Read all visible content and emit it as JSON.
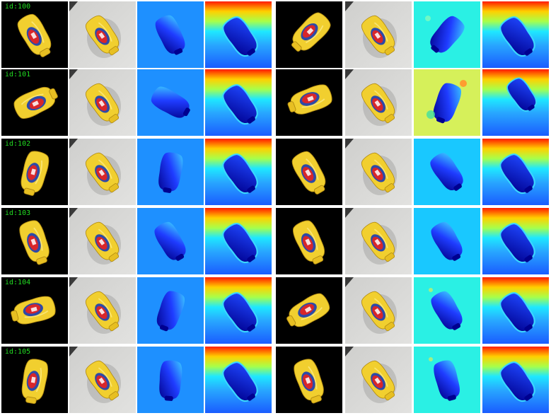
{
  "title": "",
  "columns": [
    "rendered_object",
    "input_photo",
    "predicted_depth",
    "depth_map",
    "rendered_object",
    "input_photo",
    "predicted_depth",
    "depth_map"
  ],
  "colors": {
    "label_green": "#22dd22",
    "background_black": "#000000",
    "photo_gray": "#d6d6d4",
    "mustard_yellow": "#f1cf2f",
    "label_red": "#d8262a",
    "label_blue": "#2d4aa8",
    "depth_blue": "#1e90ff",
    "depth_cyan": "#2af0e4",
    "depth_lime": "#d6f05a",
    "depth_sky": "#19c8ff"
  },
  "rows": [
    {
      "id_label": "id:100",
      "left": {
        "object_angle": -30,
        "object_state": "upright",
        "pred_bg": "#1e90ff",
        "pred_angle": -25,
        "noise": "clean"
      },
      "right": {
        "object_angle": 45,
        "object_state": "shifted",
        "pred_bg": "#2af0e4",
        "pred_angle": 40,
        "noise": "moderate"
      }
    },
    {
      "id_label": "id:101",
      "left": {
        "object_angle": -115,
        "object_state": "upright",
        "pred_bg": "#1e90ff",
        "pred_angle": -60,
        "noise": "clean"
      },
      "right": {
        "object_angle": 70,
        "object_state": "shifted",
        "pred_bg": "#d6f05a",
        "pred_angle": 20,
        "noise": "heavy"
      }
    },
    {
      "id_label": "id:102",
      "left": {
        "object_angle": 15,
        "object_state": "upright",
        "pred_bg": "#1e90ff",
        "pred_angle": 10,
        "noise": "clean"
      },
      "right": {
        "object_angle": -30,
        "object_state": "upright",
        "pred_bg": "#19c8ff",
        "pred_angle": -35,
        "noise": "clean"
      }
    },
    {
      "id_label": "id:103",
      "left": {
        "object_angle": -20,
        "object_state": "upright",
        "pred_bg": "#1e90ff",
        "pred_angle": -30,
        "noise": "clean"
      },
      "right": {
        "object_angle": -25,
        "object_state": "upright",
        "pred_bg": "#19c8ff",
        "pred_angle": -30,
        "noise": "clean"
      }
    },
    {
      "id_label": "id:104",
      "left": {
        "object_angle": 75,
        "object_state": "upright",
        "pred_bg": "#1e90ff",
        "pred_angle": 20,
        "noise": "clean"
      },
      "right": {
        "object_angle": 60,
        "object_state": "upright",
        "pred_bg": "#2af0e4",
        "pred_angle": -30,
        "noise": "slight"
      }
    },
    {
      "id_label": "id:105",
      "left": {
        "object_angle": 10,
        "object_state": "upright",
        "pred_bg": "#1e90ff",
        "pred_angle": 5,
        "noise": "clean"
      },
      "right": {
        "object_angle": -20,
        "object_state": "upright",
        "pred_bg": "#2af0e4",
        "pred_angle": -15,
        "noise": "slight"
      }
    }
  ]
}
